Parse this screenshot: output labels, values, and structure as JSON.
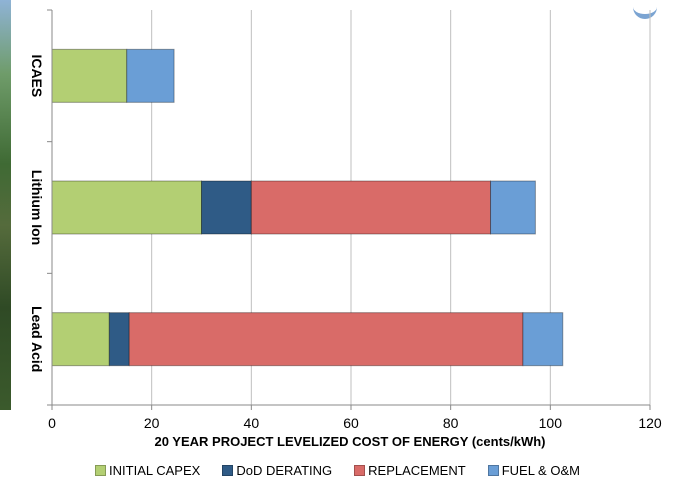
{
  "chart_data": {
    "type": "bar",
    "orientation": "horizontal",
    "stacked": true,
    "categories": [
      "ICAES",
      "Lithium Ion",
      "Lead Acid"
    ],
    "series": [
      {
        "name": "INITIAL CAPEX",
        "color": "#b3cf73",
        "values": [
          15,
          30,
          11.5
        ]
      },
      {
        "name": "DoD DERATING",
        "color": "#2f5b86",
        "values": [
          0,
          10,
          4
        ]
      },
      {
        "name": "REPLACEMENT",
        "color": "#d96b68",
        "values": [
          0,
          48,
          79
        ]
      },
      {
        "name": "FUEL & O&M",
        "color": "#6a9ed6",
        "values": [
          9.5,
          9,
          8
        ]
      }
    ],
    "xlabel": "20 YEAR PROJECT LEVELIZED COST OF ENERGY (cents/kWh)",
    "ylabel": "",
    "xlim": [
      0,
      120
    ],
    "xticks": [
      "0",
      "20",
      "40",
      "60",
      "80",
      "100",
      "120"
    ],
    "grid": true,
    "legend_position": "bottom"
  }
}
